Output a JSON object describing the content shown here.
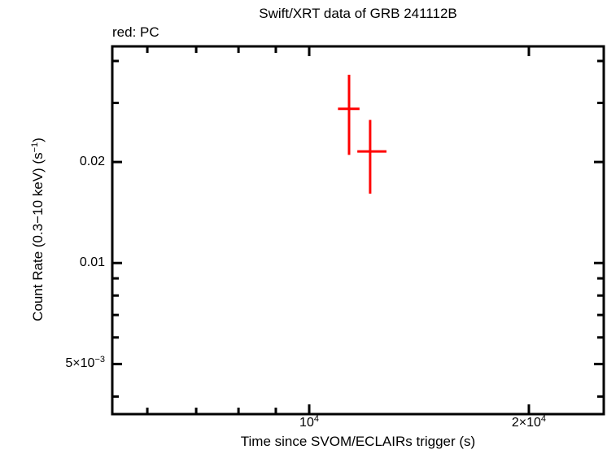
{
  "chart_data": {
    "type": "scatter",
    "title": "Swift/XRT data of GRB 241112B",
    "annotation": "red: PC",
    "xlabel": "Time since SVOM/ECLAIRs trigger (s)",
    "ylabel": "Count Rate (0.3−10 keV) (s−1)",
    "ylabel_parts": [
      {
        "t": "Count Rate (0.3−10 keV) (s"
      },
      {
        "t": "−1",
        "sup": true
      },
      {
        "t": ")"
      }
    ],
    "xscale": "log",
    "yscale": "log",
    "xlim": [
      5372,
      25330
    ],
    "ylim": [
      0.003545,
      0.04422
    ],
    "grid": false,
    "frame_color": "#000000",
    "background": "#ffffff",
    "x_major_ticks": [
      {
        "value": 10000,
        "label": "10^4",
        "parts": [
          {
            "t": "10"
          },
          {
            "t": "4",
            "sup": true
          }
        ]
      },
      {
        "value": 20000,
        "label": "2×10^4",
        "parts": [
          {
            "t": "2×10"
          },
          {
            "t": "4",
            "sup": true
          }
        ]
      }
    ],
    "x_minor_ticks": [
      6000,
      7000,
      8000,
      9000
    ],
    "y_major_ticks": [
      {
        "value": 0.02,
        "label": "0.02",
        "parts": [
          {
            "t": "0.02"
          }
        ]
      },
      {
        "value": 0.01,
        "label": "0.01",
        "parts": [
          {
            "t": "0.01"
          }
        ]
      },
      {
        "value": 0.005,
        "label": "5×10^-3",
        "parts": [
          {
            "t": "5×10"
          },
          {
            "t": "−3",
            "sup": true
          }
        ]
      }
    ],
    "y_minor_ticks": [
      0.04,
      0.03,
      0.009,
      0.008,
      0.007,
      0.006,
      0.004
    ],
    "series": [
      {
        "name": "PC",
        "color": "#ff0000",
        "points": [
          {
            "t": 11340,
            "t_lo": 10950,
            "t_hi": 11720,
            "rate": 0.0288,
            "rate_lo": 0.021,
            "rate_hi": 0.0364
          },
          {
            "t": 12120,
            "t_lo": 11640,
            "t_hi": 12760,
            "rate": 0.0215,
            "rate_lo": 0.0161,
            "rate_hi": 0.0267
          }
        ]
      }
    ]
  }
}
